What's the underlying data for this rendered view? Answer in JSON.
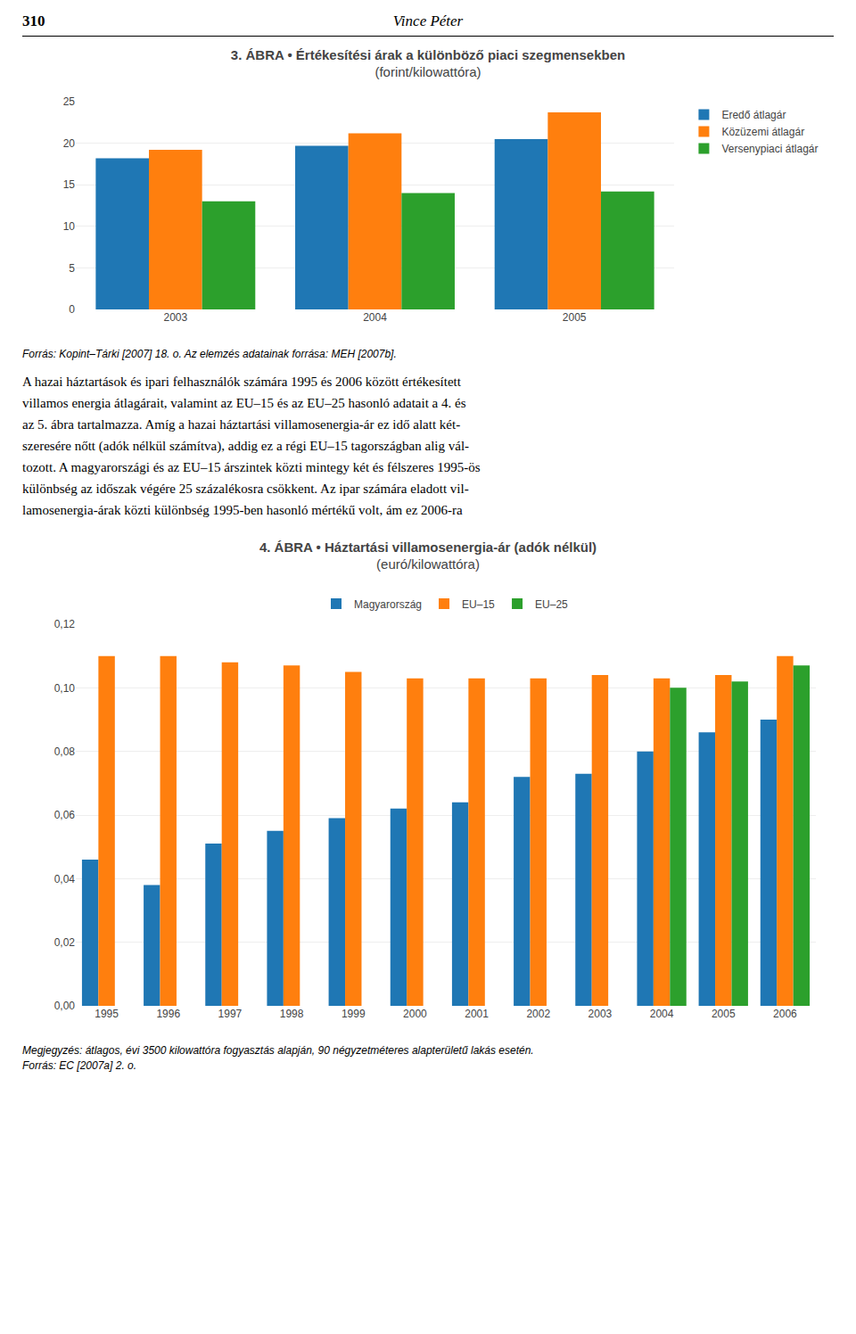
{
  "page_number": "310",
  "page_header": "Vince Péter",
  "body_lines": [
    "A hazai háztartások és ipari felhasználók számára 1995 és 2006 között értékesített",
    "villamos energia átlagárait, valamint az EU–15 és az EU–25 hasonló adatait a 4. és",
    "az 5. ábra tartalmazza. Amíg a hazai háztartási villamosenergia-ár ez idő alatt két-",
    "szeresére nőtt (adók nélkül számítva), addig ez a régi EU–15 tagországban alig vál-",
    "tozott. A magyarországi és az EU–15 árszintek közti mintegy két és félszeres 1995-ös",
    "különbség az időszak végére 25 százalékosra csökkent. Az ipar számára eladott vil-",
    "lamosenergia-árak közti különbség 1995-ben hasonló mértékű volt, ám ez 2006-ra"
  ],
  "chart_data": [
    {
      "type": "bar",
      "title": "3. ÁBRA • Értékesítési árak a különböző piaci szegmensekben",
      "subtitle": "(forint/kilowattóra)",
      "notes": [
        "Forrás: Kopint–Tárki [2007] 18. o. Az elemzés adatainak forrása: MEH [2007b]."
      ],
      "categories": [
        "2003",
        "2004",
        "2005"
      ],
      "series": [
        {
          "name": "Eredő átlagár",
          "values": [
            18.2,
            19.7,
            20.5
          ]
        },
        {
          "name": "Közüzemi átlagár",
          "values": [
            19.2,
            21.2,
            23.7
          ]
        },
        {
          "name": "Versenypiaci átlagár",
          "values": [
            13.0,
            14.0,
            14.2
          ]
        }
      ],
      "ylim": [
        0,
        25
      ],
      "yticks": [
        0,
        5,
        10,
        15,
        20,
        25
      ],
      "grid": true,
      "legend": "right"
    },
    {
      "type": "bar",
      "title": "4. ÁBRA • Háztartási villamosenergia-ár (adók nélkül)",
      "subtitle": "(euró/kilowattóra)",
      "notes": [
        "Megjegyzés: átlagos, évi 3500 kilowattóra fogyasztás alapján, 90 négyzetméteres alapterületű lakás esetén.",
        "Forrás: EC [2007a] 2. o."
      ],
      "categories": [
        "1995",
        "1996",
        "1997",
        "1998",
        "1999",
        "2000",
        "2001",
        "2002",
        "2003",
        "2004",
        "2005",
        "2006"
      ],
      "series": [
        {
          "name": "Magyarország",
          "values": [
            0.046,
            0.038,
            0.051,
            0.055,
            0.059,
            0.062,
            0.064,
            0.072,
            0.073,
            0.08,
            0.086,
            0.09
          ]
        },
        {
          "name": "EU–15",
          "values": [
            0.11,
            0.11,
            0.108,
            0.107,
            0.105,
            0.103,
            0.103,
            0.103,
            0.104,
            0.103,
            0.104,
            0.11
          ]
        },
        {
          "name": "EU–25",
          "values": [
            null,
            null,
            null,
            null,
            null,
            null,
            null,
            null,
            null,
            0.1,
            0.102,
            0.107
          ]
        }
      ],
      "ylim": [
        0,
        0.12
      ],
      "yticks": [
        {
          "value": 0,
          "label": "0,00"
        },
        {
          "value": 0.02,
          "label": "0,02"
        },
        {
          "value": 0.04,
          "label": "0,04"
        },
        {
          "value": 0.06,
          "label": "0,06"
        },
        {
          "value": 0.08,
          "label": "0,08"
        },
        {
          "value": 0.1,
          "label": "0,10"
        },
        {
          "value": 0.12,
          "label": "0,12"
        }
      ],
      "grid": true,
      "legend": "top"
    }
  ]
}
